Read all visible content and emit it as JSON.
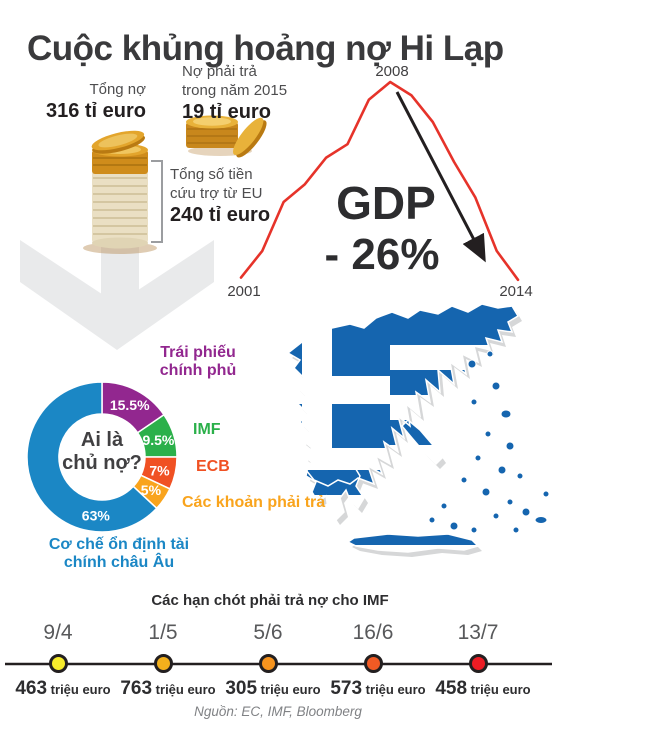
{
  "title": "Cuộc khủng hoảng nợ Hi Lạp",
  "stats": {
    "total_debt_label": "Tổng nợ",
    "total_debt_value": "316 tỉ euro",
    "due_2015_label_line1": "Nợ phải trả",
    "due_2015_label_line2": "trong năm 2015",
    "due_2015_value": "19 tỉ euro",
    "eu_bailout_label_line1": "Tổng số tiền",
    "eu_bailout_label_line2": "cứu trợ từ EU",
    "eu_bailout_value": "240 tỉ euro"
  },
  "timeline": {
    "title": "Các hạn chót phải trả nợ cho IMF",
    "items": [
      {
        "date": "9/4",
        "amount": "463",
        "unit": "triệu euro",
        "color": "#f7ec2c"
      },
      {
        "date": "1/5",
        "amount": "763",
        "unit": "triệu euro",
        "color": "#f3b01c"
      },
      {
        "date": "5/6",
        "amount": "305",
        "unit": "triệu euro",
        "color": "#f7941e"
      },
      {
        "date": "16/6",
        "amount": "573",
        "unit": "triệu euro",
        "color": "#f15a24"
      },
      {
        "date": "13/7",
        "amount": "458",
        "unit": "triệu euro",
        "color": "#ec1c24"
      }
    ]
  },
  "source": "Nguồn: EC, IMF, Bloomberg",
  "chart_data": [
    {
      "type": "pie",
      "subtype": "donut",
      "center_label_line1": "Ai là",
      "center_label_line2": "chủ nợ?",
      "legend_position": "around",
      "slices": [
        {
          "label": "Trái phiếu chính phủ",
          "value": 15.5,
          "color": "#92278f",
          "label_angle": 28
        },
        {
          "label": "IMF",
          "value": 9.5,
          "color": "#2bb04a",
          "label_angle": 73
        },
        {
          "label": "ECB",
          "value": 7,
          "color": "#f05123",
          "label_angle": 103
        },
        {
          "label": "Các khoản phải trả",
          "value": 5,
          "color": "#f9a41d",
          "label_angle": 124
        },
        {
          "label": "Cơ chế ổn định tài chính châu Âu",
          "value": 63,
          "color": "#1b87c5",
          "label_angle": 186
        }
      ]
    },
    {
      "type": "line",
      "series_name": "GDP",
      "annotation_line1": "GDP",
      "annotation_line2": "- 26%",
      "color": "#e6332a",
      "x": [
        2001,
        2002,
        2003,
        2004,
        2005,
        2006,
        2007,
        2008,
        2009,
        2010,
        2011,
        2012,
        2013,
        2014
      ],
      "values": [
        56,
        62,
        73,
        77,
        83,
        86,
        96,
        100,
        97,
        91,
        82,
        74,
        62,
        55.5
      ],
      "x_labels": {
        "start": "2001",
        "peak": "2008",
        "end": "2014"
      },
      "grid": false
    }
  ]
}
